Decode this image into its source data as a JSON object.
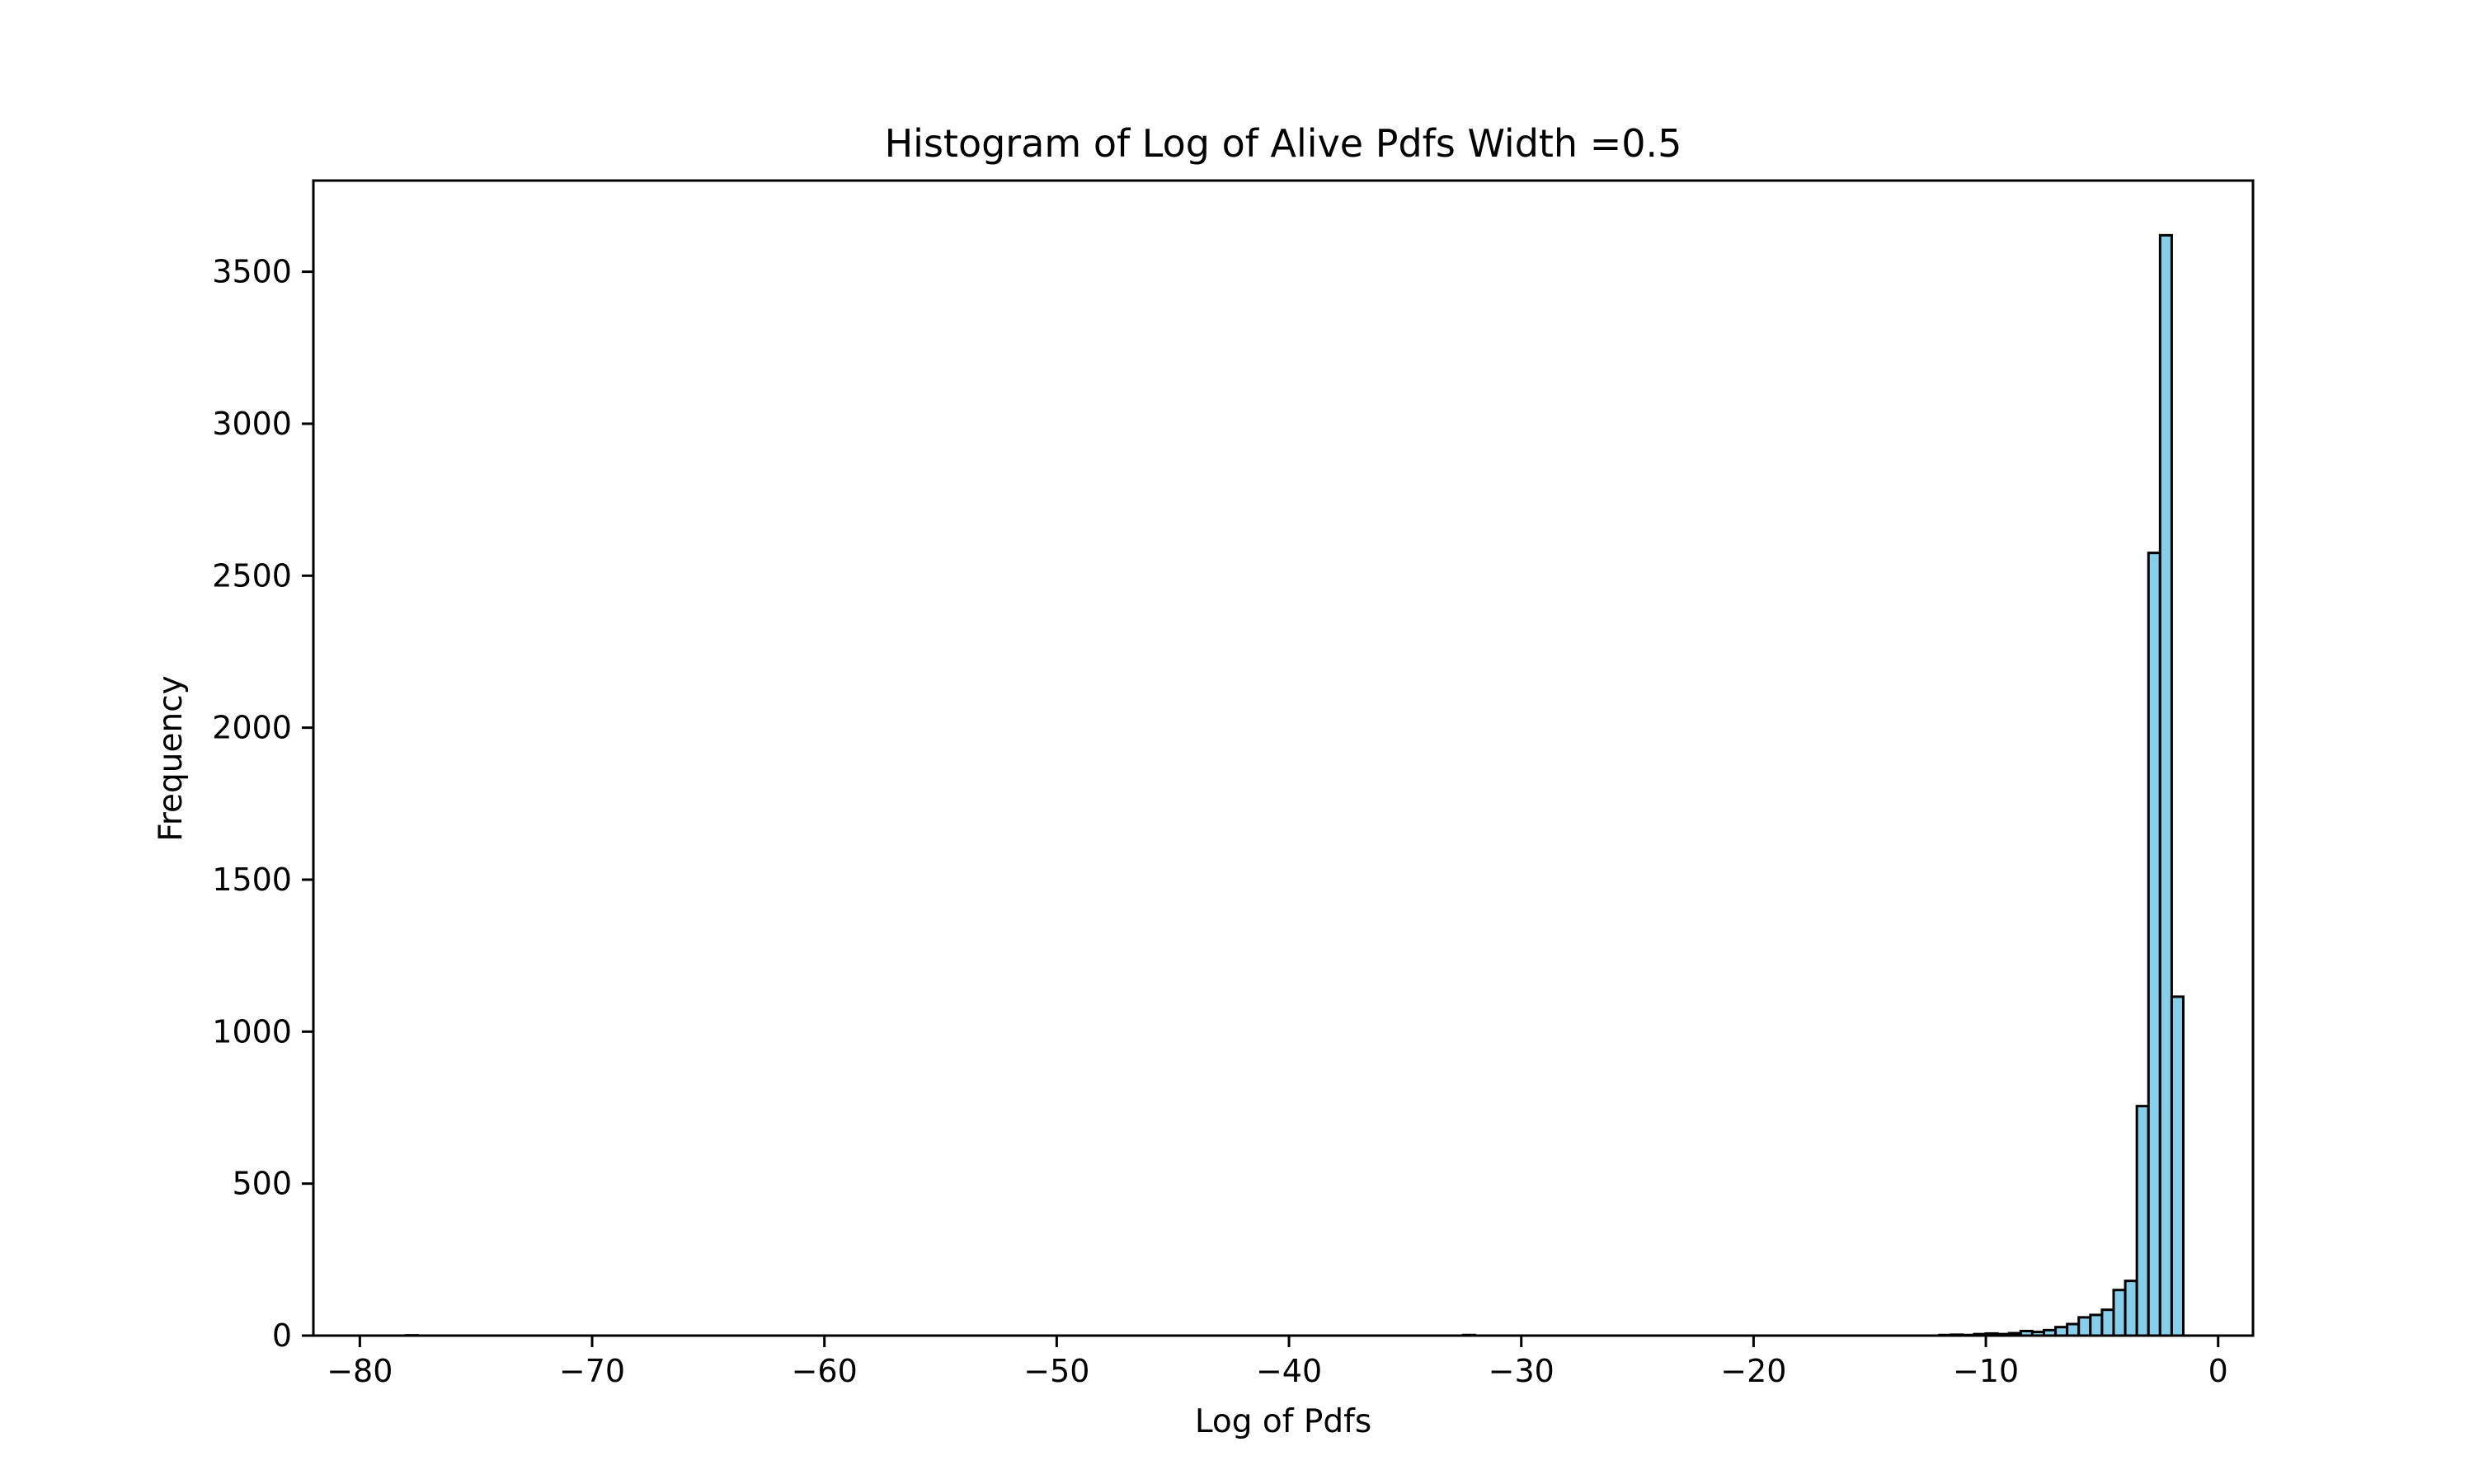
{
  "chart_data": {
    "type": "bar",
    "title": "Histogram of Log of Alive Pdfs Width =0.5",
    "xlabel": "Log of Pdfs",
    "ylabel": "Frequency",
    "xlim": [
      -82,
      1.5
    ],
    "ylim": [
      0,
      3800
    ],
    "xticks": [
      -80,
      -70,
      -60,
      -50,
      -40,
      -30,
      -20,
      -10,
      0
    ],
    "yticks": [
      0,
      500,
      1000,
      1500,
      2000,
      2500,
      3000,
      3500
    ],
    "xtick_labels": [
      "−80",
      "−70",
      "−60",
      "−50",
      "−40",
      "−30",
      "−20",
      "−10",
      "0"
    ],
    "ytick_labels": [
      "0",
      "500",
      "1000",
      "1500",
      "2000",
      "2500",
      "3000",
      "3500"
    ],
    "bin_width": 0.5,
    "bar_color": "#87ceeb",
    "edge_color": "#000000",
    "grid": false,
    "bins": [
      {
        "x0": -78.0,
        "value": 1
      },
      {
        "x0": -32.5,
        "value": 2
      },
      {
        "x0": -12.0,
        "value": 2
      },
      {
        "x0": -11.5,
        "value": 3
      },
      {
        "x0": -11.0,
        "value": 2
      },
      {
        "x0": -10.5,
        "value": 5
      },
      {
        "x0": -10.0,
        "value": 7
      },
      {
        "x0": -9.5,
        "value": 5
      },
      {
        "x0": -9.0,
        "value": 8
      },
      {
        "x0": -8.5,
        "value": 15
      },
      {
        "x0": -8.0,
        "value": 12
      },
      {
        "x0": -7.5,
        "value": 18
      },
      {
        "x0": -7.0,
        "value": 28
      },
      {
        "x0": -6.5,
        "value": 38
      },
      {
        "x0": -6.0,
        "value": 60
      },
      {
        "x0": -5.5,
        "value": 68
      },
      {
        "x0": -5.0,
        "value": 85
      },
      {
        "x0": -4.5,
        "value": 150
      },
      {
        "x0": -4.0,
        "value": 180
      },
      {
        "x0": -3.5,
        "value": 755
      },
      {
        "x0": -3.0,
        "value": 2575
      },
      {
        "x0": -2.5,
        "value": 3620
      },
      {
        "x0": -2.0,
        "value": 1115
      }
    ]
  }
}
